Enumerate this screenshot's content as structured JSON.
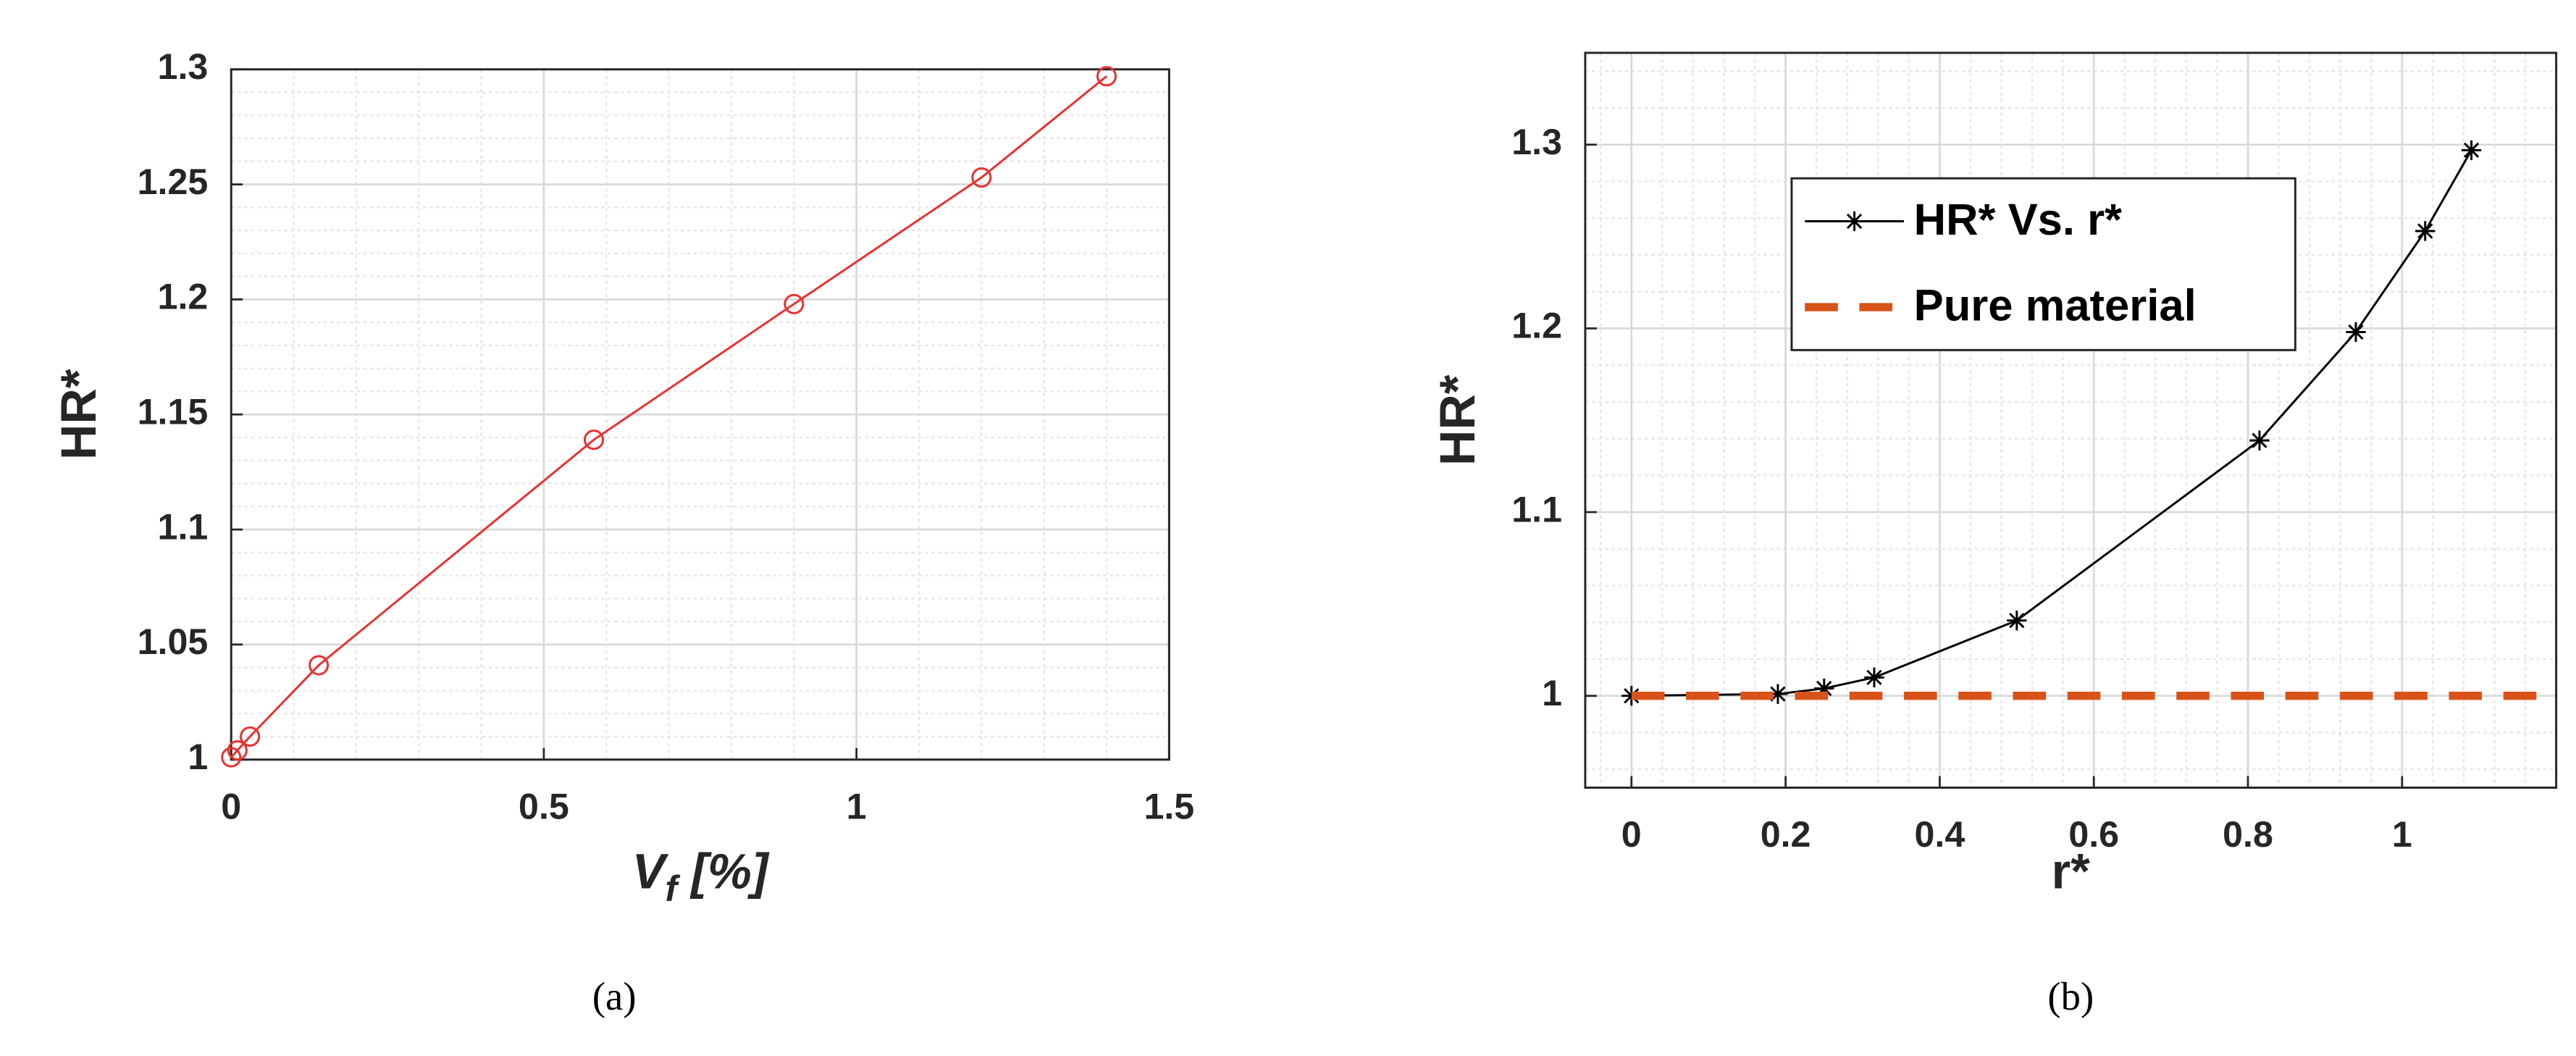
{
  "chart_data": [
    {
      "type": "line",
      "caption": "(a)",
      "ylabel": "HR*",
      "xlabel": {
        "text": "V",
        "subscript": "f",
        "suffix": " [%]"
      },
      "xlim": [
        0,
        1.5
      ],
      "xticks": [
        0,
        0.5,
        1,
        1.5
      ],
      "ylim": [
        1,
        1.3
      ],
      "yticks": [
        1,
        1.05,
        1.1,
        1.15,
        1.2,
        1.25,
        1.3
      ],
      "grid": true,
      "minor_grid": true,
      "series": [
        {
          "color": "#e8312f",
          "marker": "circle",
          "line": "solid",
          "x": [
            0,
            0.01,
            0.03,
            0.14,
            0.58,
            0.9,
            1.2,
            1.4
          ],
          "values": [
            1.001,
            1.004,
            1.01,
            1.041,
            1.139,
            1.198,
            1.253,
            1.297
          ]
        }
      ]
    },
    {
      "type": "line",
      "caption": "(b)",
      "ylabel": "HR*",
      "xlabel": {
        "text": "r*"
      },
      "xlim": [
        -0.06,
        1.2
      ],
      "xticks": [
        0,
        0.2,
        0.4,
        0.6,
        0.8,
        1
      ],
      "ylim": [
        0.95,
        1.35
      ],
      "yticks": [
        1,
        1.1,
        1.2,
        1.3
      ],
      "grid": true,
      "minor_grid": true,
      "legend": "upper left",
      "series": [
        {
          "name": "HR* Vs. r*",
          "color": "#000000",
          "marker": "asterisk",
          "line": "solid",
          "x": [
            0,
            0.19,
            0.25,
            0.315,
            0.5,
            0.815,
            0.94,
            1.03,
            1.09
          ],
          "values": [
            1.0,
            1.001,
            1.004,
            1.01,
            1.041,
            1.139,
            1.198,
            1.253,
            1.297
          ]
        },
        {
          "name": "Pure material",
          "color": "#d95319",
          "marker": "none",
          "line": "dashed",
          "x": [
            0,
            1.2
          ],
          "values": [
            1,
            1
          ]
        }
      ]
    }
  ]
}
